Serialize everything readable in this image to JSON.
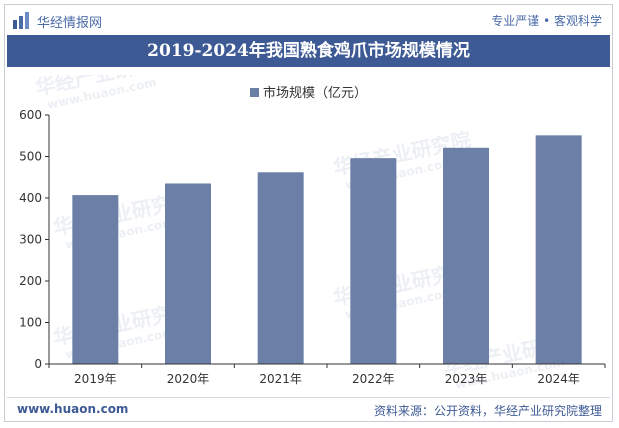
{
  "header": {
    "brand": "华经情报网",
    "tagline": "专业严谨 • 客观科学"
  },
  "footer": {
    "site": "www.huaon.com",
    "source": "资料来源：公开资料，华经产业研究院整理"
  },
  "watermark": {
    "text": "华经产业研究院",
    "url": "www.huaon.com"
  },
  "colors": {
    "bar": "#6c7fa6",
    "title_bg": "#3d5a95",
    "brand": "#4a6aa8"
  },
  "chart_data": {
    "type": "bar",
    "title": "2019-2024年我国熟食鸡爪市场规模情况",
    "categories": [
      "2019年",
      "2020年",
      "2021年",
      "2022年",
      "2023年",
      "2024年"
    ],
    "series": [
      {
        "name": "市场规模（亿元）",
        "values": [
          407,
          435,
          462,
          496,
          521,
          551
        ]
      }
    ],
    "ylim": [
      0,
      600
    ],
    "yticks": [
      0,
      100,
      200,
      300,
      400,
      500,
      600
    ],
    "legend": "top-center",
    "grid": false
  }
}
